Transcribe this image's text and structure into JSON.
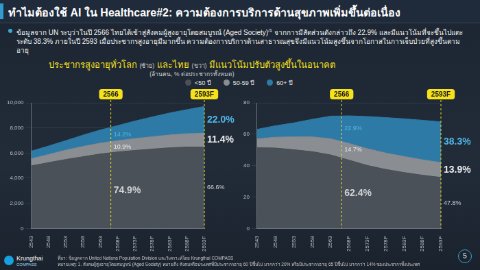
{
  "header": {
    "title": "ทำไมต้องใช้ AI ใน Healthcare#2: ความต้องการบริการด้านสุขภาพเพิ่มขึ้นต่อเนื่อง"
  },
  "bullet": {
    "text": "ข้อมูลจาก UN ระบุว่าในปี 2566 ไทยได้เข้าสู่สังคมผู้สูงอายุโดยสมบูรณ์ (Aged Society)",
    "superscript": "/1",
    "text_after": " จากการมีสัดส่วนดังกล่าวถึง 22.9% และมีแนวโน้มที่จะขึ้นไปแตะระดับ 38.3% ภายในปี 2593 เมื่อประชากรสูงอายุมีมากขึ้น ความต้องการบริการด้านสาธารณสุขจึงมีแนวโน้มสูงขึ้นจากโอกาสในการเจ็บป่วยที่สูงขึ้นตามอายุ"
  },
  "subtitle_parts": [
    "ประชากรสูงอายุทั่วโลก ",
    "(ซ้าย)",
    " และไทย ",
    "(ขวา)",
    " มีแนวโน้มปรับตัวสูงขึ้นในอนาคต"
  ],
  "unit": "(ล้านคน, % ต่อประชากรทั้งหมด)",
  "chart_data": [
    {
      "type": "area",
      "stacked": true,
      "grid": true,
      "x": [
        2543,
        2548,
        2553,
        2558,
        2563,
        2568,
        2573,
        2578,
        2583,
        2588,
        2593
      ],
      "xlim": [
        2543,
        2593
      ],
      "xticks": [
        2543,
        2548,
        2553,
        2558,
        2563,
        {
          "value": 2568,
          "label": "2568F"
        },
        {
          "value": 2573,
          "label": "2573F"
        },
        {
          "value": 2578,
          "label": "2578F"
        },
        {
          "value": 2583,
          "label": "2583F"
        },
        {
          "value": 2588,
          "label": "2588F"
        },
        {
          "value": 2593,
          "label": "2593F"
        }
      ],
      "ylim": [
        0,
        10000
      ],
      "yticks": [
        0,
        {
          "value": 2000,
          "label": "2,000"
        },
        {
          "value": 4000,
          "label": "4,000"
        },
        {
          "value": 6000,
          "label": "6,000"
        },
        {
          "value": 8000,
          "label": "8,000"
        },
        {
          "value": 10000,
          "label": "10,000"
        }
      ],
      "series": [
        {
          "name": "<50 ปี",
          "color": "#4b5158",
          "values": [
            4980,
            5240,
            5490,
            5710,
            5930,
            6090,
            6210,
            6320,
            6420,
            6480,
            6470
          ]
        },
        {
          "name": "50-59 ปี",
          "color": "#8a8d91",
          "values": [
            560,
            640,
            740,
            820,
            860,
            900,
            940,
            980,
            1020,
            1060,
            1110
          ]
        },
        {
          "name": "60+ ปี",
          "color": "#2e7aa6",
          "values": [
            610,
            680,
            760,
            900,
            1050,
            1200,
            1400,
            1580,
            1750,
            1920,
            2130
          ]
        }
      ],
      "annotations": [
        {
          "x": 2566,
          "label": "2566",
          "series_labels": [
            "74.9%",
            "10.9%",
            "14.2%"
          ]
        },
        {
          "x": 2593,
          "label": "2593F",
          "series_labels": [
            "66.6%",
            "11.4%",
            "22.0%"
          ]
        }
      ]
    },
    {
      "type": "area",
      "stacked": true,
      "grid": true,
      "x": [
        2543,
        2548,
        2553,
        2558,
        2563,
        2568,
        2573,
        2578,
        2583,
        2588,
        2593
      ],
      "xlim": [
        2543,
        2593
      ],
      "xticks": [
        2543,
        2548,
        2553,
        2558,
        2563,
        {
          "value": 2568,
          "label": "2568F"
        },
        {
          "value": 2573,
          "label": "2573F"
        },
        {
          "value": 2578,
          "label": "2578F"
        },
        {
          "value": 2583,
          "label": "2583F"
        },
        {
          "value": 2588,
          "label": "2588F"
        },
        {
          "value": 2593,
          "label": "2593F"
        }
      ],
      "ylim": [
        0,
        80
      ],
      "yticks": [
        0,
        20,
        40,
        60,
        80
      ],
      "series": [
        {
          "name": "<50 ปี",
          "color": "#4b5158",
          "values": [
            51.4,
            51.2,
            50.1,
            48.9,
            46.8,
            43.5,
            40.1,
            37.6,
            35.6,
            33.9,
            32.5
          ]
        },
        {
          "name": "50-59 ปี",
          "color": "#8a8d91",
          "values": [
            5.6,
            6.9,
            8.2,
            9.4,
            10.3,
            10.6,
            10.7,
            10.4,
            10.2,
            9.8,
            9.4
          ]
        },
        {
          "name": "60+ ปี",
          "color": "#2e7aa6",
          "values": [
            6.1,
            7.3,
            8.9,
            11.2,
            14.4,
            17.6,
            20.5,
            22.6,
            24.0,
            25.2,
            26.0
          ]
        }
      ],
      "annotations": [
        {
          "x": 2566,
          "label": "2566",
          "series_labels": [
            "62.4%",
            "14.7%",
            "22.9%"
          ]
        },
        {
          "x": 2593,
          "label": "2593F",
          "series_labels": [
            "47.8%",
            "13.9%",
            "38.3%"
          ]
        }
      ]
    }
  ],
  "footer": {
    "source": "ที่มา: ข้อมูลจาก United Nations Population Division และวิเคราะห์โดย Krungthai COMPASS",
    "note": "หมายเหตุ: 1. สังคมผู้สูงอายุโดยสมบูรณ์ (Aged Society) หมายถึง สังคมหรือประเทศที่มีประชากรอายุ 60 ปีขึ้นไป มากกว่า 20% หรือมีประชากรอายุ 65 ปีขึ้นไป มากกว่า 14% ของประชากรทั้งประเทศ"
  },
  "logo": [
    "Krungthai",
    "COMPASS"
  ],
  "page": 5
}
